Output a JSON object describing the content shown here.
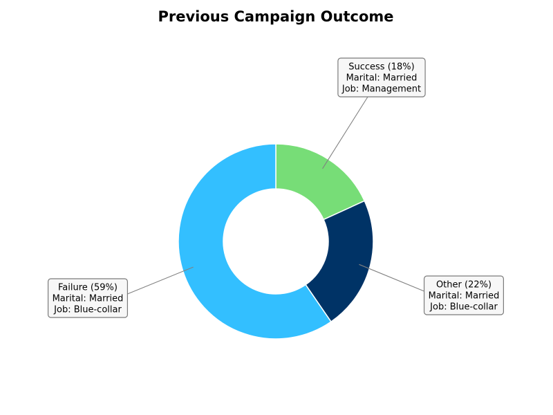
{
  "chart_data": {
    "type": "pie",
    "variant": "donut",
    "title": "Previous Campaign Outcome",
    "start_angle_deg": 90,
    "direction": "clockwise",
    "legend": "none",
    "slices": [
      {
        "category": "Success",
        "value": 18,
        "color": "#77dd77",
        "label_lines": [
          "Success (18%)",
          "Marital: Married",
          "Job: Management"
        ]
      },
      {
        "category": "Other",
        "value": 22,
        "color": "#003366",
        "label_lines": [
          "Other (22%)",
          "Marital: Married",
          "Job: Blue-collar"
        ]
      },
      {
        "category": "Failure",
        "value": 59,
        "color": "#33bfff",
        "label_lines": [
          "Failure (59%)",
          "Marital: Married",
          "Job: Blue-collar"
        ]
      }
    ]
  }
}
